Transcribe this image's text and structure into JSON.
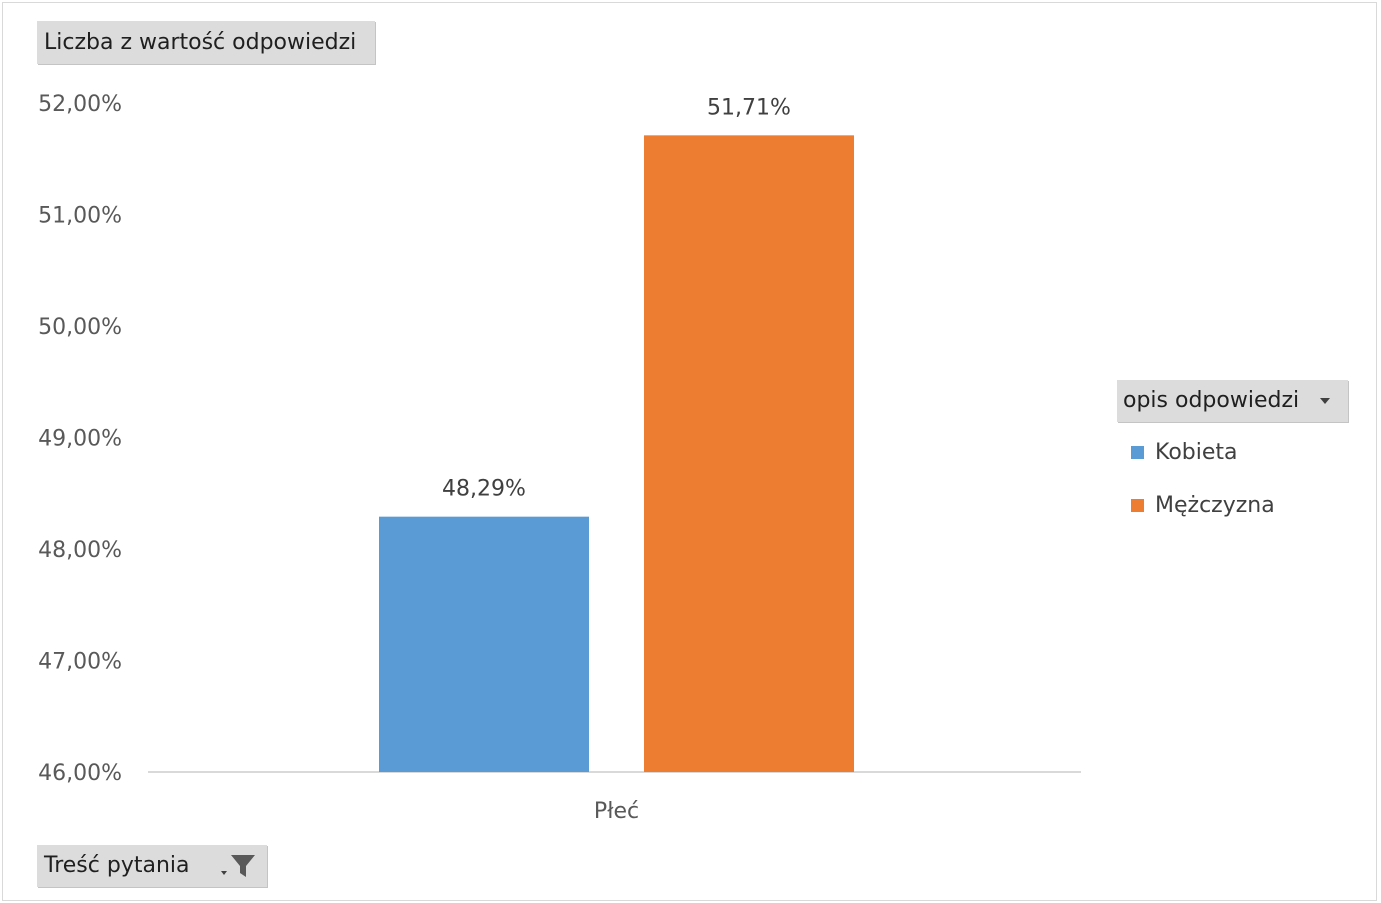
{
  "value_field": {
    "label": "Liczba z wartość odpowiedzi"
  },
  "filter_field": {
    "label": "Treść pytania",
    "icon": "filter-icon"
  },
  "series_field": {
    "label": "opis odpowiedzi",
    "icon": "dropdown-arrow-icon"
  },
  "legend": [
    {
      "label": "Kobieta",
      "color": "#5b9bd5"
    },
    {
      "label": "Mężczyzna",
      "color": "#ed7d31"
    }
  ],
  "chart_data": {
    "type": "bar",
    "title": "",
    "xlabel": "",
    "ylabel": "",
    "categories": [
      "Płeć"
    ],
    "series": [
      {
        "name": "Kobieta",
        "values": [
          0.4829
        ],
        "label": "48,29%",
        "color": "#5b9bd5"
      },
      {
        "name": "Mężczyzna",
        "values": [
          0.5171
        ],
        "label": "51,71%",
        "color": "#ed7d31"
      }
    ],
    "ylim": [
      0.46,
      0.52
    ],
    "yticks": [
      0.46,
      0.47,
      0.48,
      0.49,
      0.5,
      0.51,
      0.52
    ],
    "ytick_labels": [
      "46,00%",
      "47,00%",
      "48,00%",
      "49,00%",
      "50,00%",
      "51,00%",
      "52,00%"
    ],
    "grid": false,
    "legend_position": "right"
  }
}
